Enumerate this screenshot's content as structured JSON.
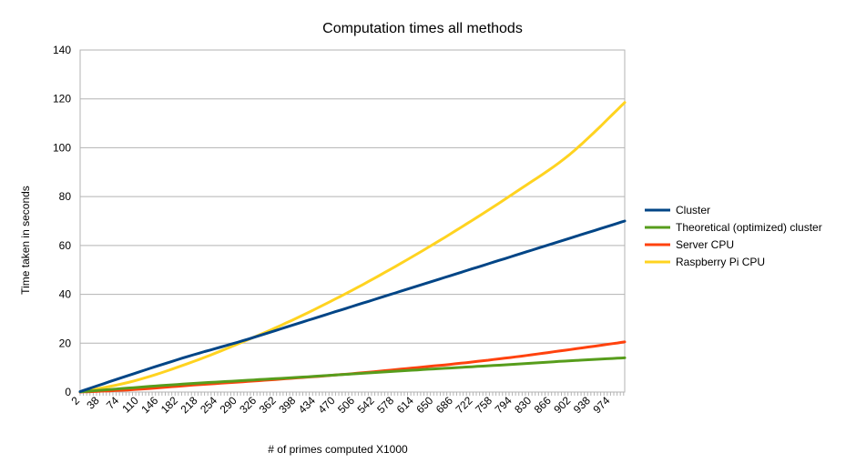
{
  "chart_data": {
    "type": "line",
    "title": "Computation times all methods",
    "xlabel": "# of primes computed X1000",
    "ylabel": "Time taken in seconds",
    "x_range": [
      2,
      1000
    ],
    "x_tick_labels": [
      "2",
      "38",
      "74",
      "110",
      "146",
      "182",
      "218",
      "254",
      "290",
      "326",
      "362",
      "398",
      "434",
      "470",
      "506",
      "542",
      "578",
      "614",
      "650",
      "686",
      "722",
      "758",
      "794",
      "830",
      "866",
      "902",
      "938",
      "974"
    ],
    "ylim": [
      0,
      140
    ],
    "y_ticks": [
      0,
      20,
      40,
      60,
      80,
      100,
      120,
      140
    ],
    "y_tick_labels": [
      "0",
      "20",
      "40",
      "60",
      "80",
      "100",
      "120",
      "140"
    ],
    "grid": true,
    "legend_position": "right",
    "x": [
      2,
      100,
      200,
      300,
      400,
      500,
      600,
      700,
      800,
      900,
      1000
    ],
    "series": [
      {
        "name": "Cluster",
        "color": "#004586",
        "values": [
          0.2,
          7.5,
          14.6,
          21.0,
          28.0,
          35.0,
          42.0,
          49.0,
          56.0,
          63.0,
          70.0
        ]
      },
      {
        "name": "Theoretical (optimized) cluster",
        "color": "#579d1c",
        "values": [
          0.1,
          1.8,
          3.4,
          4.7,
          6.0,
          7.4,
          8.8,
          10.1,
          11.4,
          12.8,
          14.0
        ]
      },
      {
        "name": "Server CPU",
        "color": "#ff420e",
        "values": [
          0,
          1.0,
          2.7,
          4.2,
          5.8,
          7.5,
          9.6,
          11.8,
          14.4,
          17.4,
          20.5
        ]
      },
      {
        "name": "Raspberry Pi CPU",
        "color": "#ffd320",
        "values": [
          0,
          4.5,
          11.7,
          20.5,
          30.4,
          41.6,
          54.0,
          67.4,
          81.8,
          97.4,
          118.5
        ]
      }
    ]
  }
}
